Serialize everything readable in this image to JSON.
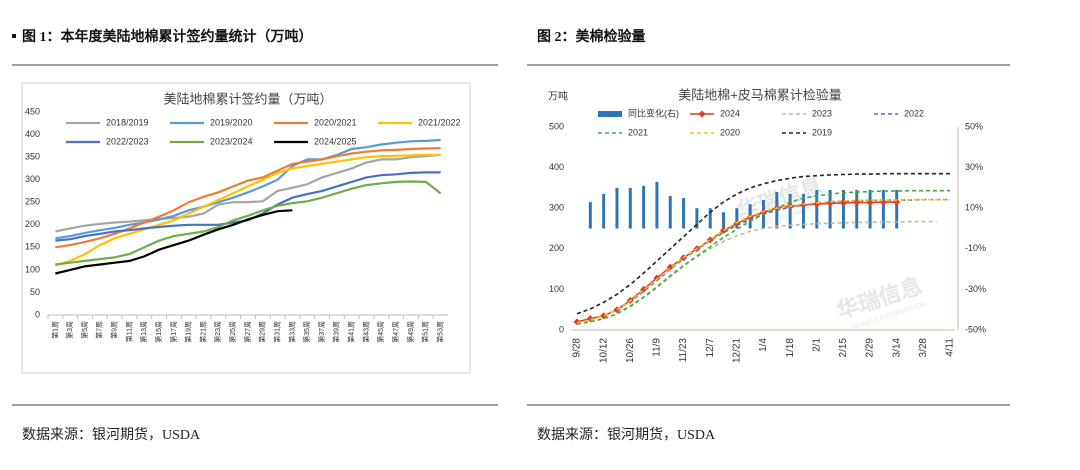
{
  "figures": [
    {
      "caption": "图 1：本年度美陆地棉累计签约量统计（万吨）",
      "source": "数据来源：银河期货，USDA"
    },
    {
      "caption": "图 2：美棉检验量",
      "source": "数据来源：银河期货，USDA"
    }
  ],
  "chart_data": [
    {
      "type": "line",
      "title": "美陆地棉累计签约量（万吨）",
      "categories": [
        "第1周",
        "第3周",
        "第5周",
        "第7周",
        "第9周",
        "第11周",
        "第13周",
        "第15周",
        "第17周",
        "第19周",
        "第21周",
        "第23周",
        "第25周",
        "第27周",
        "第29周",
        "第31周",
        "第33周",
        "第35周",
        "第37周",
        "第39周",
        "第41周",
        "第43周",
        "第45周",
        "第47周",
        "第49周",
        "第51周",
        "第53周"
      ],
      "ylim": [
        0,
        450
      ],
      "yticks": [
        0,
        50,
        100,
        150,
        200,
        250,
        300,
        350,
        400,
        450
      ],
      "grid": false,
      "series": [
        {
          "name": "2018/2019",
          "color": "#a5a5a5",
          "values": [
            185,
            192,
            198,
            202,
            205,
            207,
            210,
            213,
            215,
            218,
            225,
            245,
            250,
            250,
            252,
            275,
            282,
            290,
            305,
            315,
            325,
            338,
            345,
            345,
            350,
            352,
            355
          ]
        },
        {
          "name": "2019/2020",
          "color": "#5b9bd5",
          "values": [
            170,
            175,
            182,
            188,
            193,
            200,
            205,
            212,
            220,
            232,
            240,
            250,
            260,
            272,
            285,
            300,
            330,
            345,
            345,
            355,
            368,
            372,
            378,
            382,
            385,
            386,
            388
          ]
        },
        {
          "name": "2020/2021",
          "color": "#ed7d31",
          "values": [
            150,
            155,
            162,
            170,
            180,
            192,
            205,
            218,
            232,
            250,
            262,
            272,
            285,
            298,
            305,
            320,
            335,
            340,
            345,
            352,
            358,
            362,
            365,
            366,
            368,
            369,
            370
          ]
        },
        {
          "name": "2021/2022",
          "color": "#ffc000",
          "values": [
            110,
            120,
            135,
            155,
            170,
            180,
            190,
            200,
            210,
            225,
            240,
            255,
            270,
            285,
            300,
            315,
            325,
            330,
            335,
            340,
            345,
            350,
            352,
            353,
            354,
            355,
            355
          ]
        },
        {
          "name": "2022/2023",
          "color": "#4472c4",
          "values": [
            165,
            168,
            175,
            180,
            185,
            188,
            192,
            195,
            198,
            200,
            200,
            200,
            205,
            210,
            225,
            245,
            260,
            268,
            275,
            285,
            295,
            305,
            310,
            312,
            315,
            316,
            316
          ]
        },
        {
          "name": "2023/2024",
          "color": "#70ad47",
          "values": [
            112,
            116,
            120,
            124,
            128,
            135,
            150,
            165,
            175,
            180,
            185,
            195,
            210,
            220,
            232,
            242,
            248,
            252,
            260,
            270,
            280,
            288,
            292,
            295,
            296,
            295,
            270
          ]
        },
        {
          "name": "2024/2025",
          "color": "#000000",
          "values": [
            92,
            100,
            108,
            112,
            116,
            120,
            130,
            145,
            155,
            165,
            178,
            190,
            200,
            212,
            222,
            230,
            232,
            null,
            null,
            null,
            null,
            null,
            null,
            null,
            null,
            null,
            null
          ]
        }
      ]
    },
    {
      "type": "combo",
      "title": "美陆地棉+皮马棉累计检验量",
      "y_label": "万吨",
      "watermark": "华瑞信息",
      "watermark_sub": "HUARUI INFORMATION",
      "categories": [
        "9/28",
        null,
        "10/12",
        null,
        "10/26",
        null,
        "11/9",
        null,
        "11/23",
        null,
        "12/7",
        null,
        "12/21",
        null,
        "1/4",
        null,
        "1/18",
        null,
        "2/1",
        null,
        "2/15",
        null,
        "2/29",
        null,
        "3/14",
        null,
        "3/28",
        null,
        "4/11"
      ],
      "ylim": [
        0,
        500
      ],
      "yticks": [
        0,
        100,
        200,
        300,
        400,
        500
      ],
      "y2lim": [
        -50,
        50
      ],
      "y2ticks": [
        {
          "value": -50,
          "label": "-50%"
        },
        {
          "value": -30,
          "label": "-30%"
        },
        {
          "value": -10,
          "label": "-10%"
        },
        {
          "value": 10,
          "label": "10%"
        },
        {
          "value": 30,
          "label": "30%"
        },
        {
          "value": 50,
          "label": "50%"
        }
      ],
      "grid": false,
      "series": [
        {
          "name": "同比变化(右)",
          "type": "bar",
          "axis": "y2",
          "color": "#2e75b6",
          "values": [
            null,
            13,
            17,
            20,
            20,
            21,
            23,
            16,
            15,
            10,
            10,
            8,
            10,
            12,
            14,
            18,
            17,
            17,
            19,
            19,
            19,
            19,
            19,
            19,
            19,
            null,
            null,
            null,
            null
          ]
        },
        {
          "name": "2024",
          "type": "line",
          "color": "#e03c31",
          "marker": "diamond",
          "values": [
            20,
            28,
            35,
            50,
            73,
            100,
            128,
            155,
            178,
            200,
            222,
            245,
            262,
            278,
            290,
            300,
            305,
            308,
            310,
            312,
            313,
            314,
            314,
            315,
            315,
            null,
            null,
            null,
            null
          ]
        },
        {
          "name": "2023",
          "type": "line",
          "color": "#c9b99a",
          "dash": true,
          "values": [
            15,
            20,
            28,
            40,
            60,
            82,
            108,
            135,
            160,
            180,
            200,
            218,
            232,
            243,
            250,
            255,
            258,
            260,
            262,
            263,
            264,
            265,
            265,
            266,
            266,
            267,
            267,
            267,
            null
          ]
        },
        {
          "name": "2022",
          "type": "line",
          "color": "#4472c4",
          "dash": true,
          "values": [
            18,
            25,
            35,
            50,
            70,
            95,
            122,
            150,
            175,
            198,
            220,
            240,
            258,
            272,
            285,
            295,
            302,
            308,
            312,
            315,
            317,
            318,
            319,
            320,
            320,
            320,
            321,
            321,
            321
          ]
        },
        {
          "name": "2021",
          "type": "line",
          "color": "#3fae49",
          "dash": true,
          "values": [
            15,
            20,
            28,
            40,
            58,
            80,
            105,
            132,
            158,
            182,
            205,
            228,
            248,
            268,
            285,
            300,
            315,
            325,
            330,
            335,
            338,
            340,
            341,
            342,
            342,
            343,
            343,
            343,
            343
          ]
        },
        {
          "name": "2020",
          "type": "line",
          "color": "#ffc000",
          "dash": true,
          "values": [
            18,
            25,
            35,
            50,
            72,
            98,
            125,
            152,
            178,
            200,
            222,
            245,
            265,
            280,
            292,
            300,
            305,
            310,
            313,
            316,
            318,
            319,
            320,
            320,
            320,
            321,
            321,
            321,
            321
          ]
        },
        {
          "name": "2019",
          "type": "line",
          "color": "#222222",
          "dash": true,
          "values": [
            40,
            52,
            68,
            88,
            112,
            140,
            170,
            200,
            230,
            260,
            290,
            315,
            335,
            350,
            360,
            368,
            374,
            378,
            380,
            382,
            383,
            384,
            384,
            385,
            385,
            385,
            385,
            385,
            385
          ]
        }
      ]
    }
  ]
}
